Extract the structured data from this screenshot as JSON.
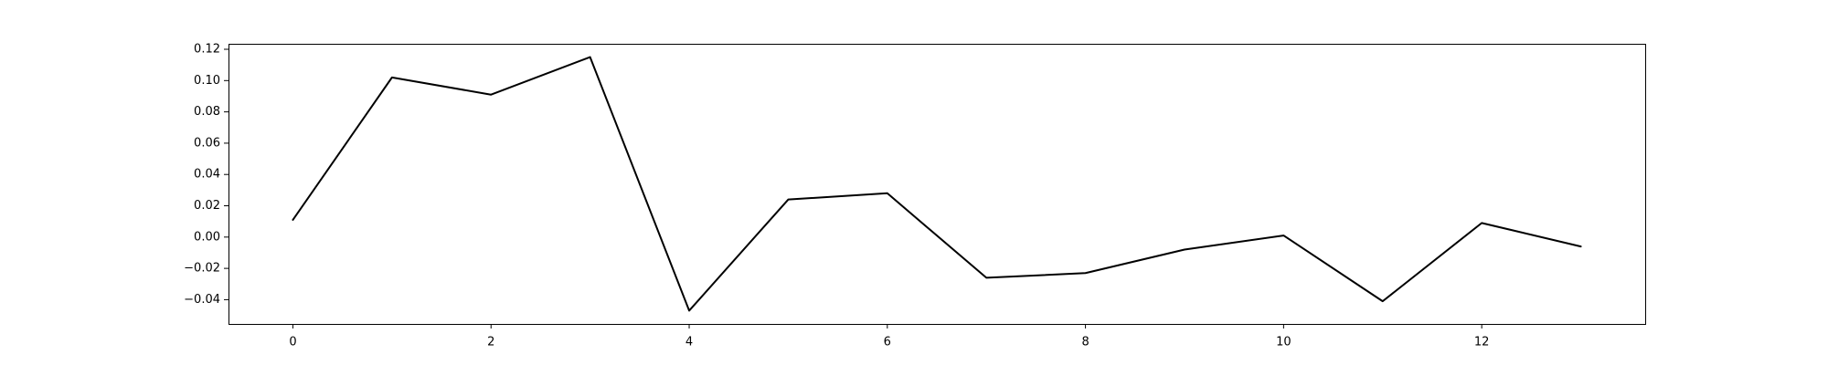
{
  "chart_data": {
    "type": "line",
    "title": "",
    "xlabel": "",
    "ylabel": "",
    "x": [
      0,
      1,
      2,
      3,
      4,
      5,
      6,
      7,
      8,
      9,
      10,
      11,
      12,
      13
    ],
    "series": [
      {
        "values": [
          0.011,
          0.102,
          0.091,
          0.115,
          -0.047,
          0.024,
          0.028,
          -0.026,
          -0.023,
          -0.008,
          0.001,
          -0.041,
          0.009,
          -0.006
        ],
        "color": "#000000"
      }
    ],
    "xlim": [
      -0.65,
      13.65
    ],
    "ylim": [
      -0.0555,
      0.1235
    ],
    "xticks": [
      0,
      2,
      4,
      6,
      8,
      10,
      12
    ],
    "xtick_labels": [
      "0",
      "2",
      "4",
      "6",
      "8",
      "10",
      "12"
    ],
    "yticks": [
      -0.04,
      -0.02,
      0.0,
      0.02,
      0.04,
      0.06,
      0.08,
      0.1,
      0.12
    ],
    "ytick_labels": [
      "−0.04",
      "−0.02",
      "0.00",
      "0.02",
      "0.04",
      "0.06",
      "0.08",
      "0.10",
      "0.12"
    ],
    "grid": false,
    "legend": "none"
  }
}
